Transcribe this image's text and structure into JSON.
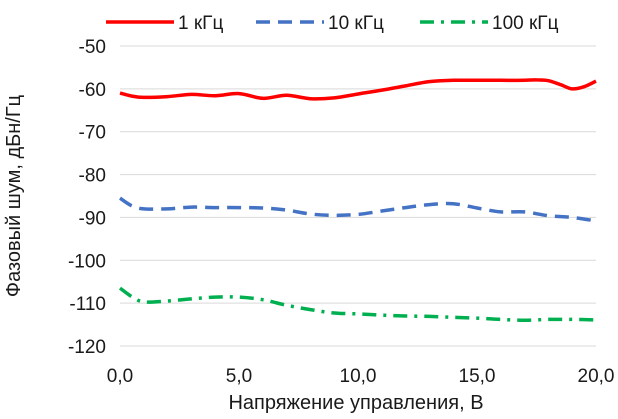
{
  "chart_data": {
    "type": "line",
    "xlabel": "Напряжение управления, В",
    "ylabel": "Фазовый шум, дБн/Гц",
    "xlim": [
      0,
      20
    ],
    "ylim": [
      -120,
      -50
    ],
    "x_ticks": [
      0,
      5,
      10,
      15,
      20
    ],
    "x_tick_labels": [
      "0,0",
      "5,0",
      "10,0",
      "15,0",
      "20,0"
    ],
    "y_ticks": [
      -50,
      -60,
      -70,
      -80,
      -90,
      -100,
      -110,
      -120
    ],
    "y_tick_labels": [
      "-50",
      "-60",
      "-70",
      "-80",
      "-90",
      "-100",
      "-110",
      "-120"
    ],
    "grid": "horizontal",
    "legend_position": "top",
    "series": [
      {
        "name": "1 кГц",
        "color": "#ff0000",
        "line_style": "solid",
        "x": [
          0,
          0.5,
          1,
          2,
          3,
          4,
          5,
          6,
          7,
          8,
          9,
          10,
          11,
          12,
          13,
          14,
          15,
          16,
          17,
          17.5,
          18,
          18.5,
          19,
          19.5,
          20
        ],
        "y": [
          -61,
          -61.7,
          -62,
          -61.8,
          -61.3,
          -61.6,
          -61.1,
          -62.2,
          -61.5,
          -62.3,
          -62.1,
          -61.2,
          -60.3,
          -59.3,
          -58.3,
          -58.0,
          -58.0,
          -58.0,
          -58.0,
          -57.9,
          -58.1,
          -59.0,
          -60.0,
          -59.5,
          -58.2
        ]
      },
      {
        "name": "10 кГц",
        "color": "#4472c4",
        "line_style": "dashed",
        "x": [
          0,
          0.5,
          1,
          2,
          3,
          4,
          5,
          6,
          7,
          8,
          9,
          10,
          11,
          12,
          13,
          14,
          15,
          16,
          17,
          18,
          19,
          20
        ],
        "y": [
          -85.5,
          -87.3,
          -88,
          -88,
          -87.6,
          -87.7,
          -87.7,
          -87.8,
          -88.3,
          -89.2,
          -89.5,
          -89.3,
          -88.5,
          -87.7,
          -87.0,
          -86.8,
          -87.8,
          -88.7,
          -88.7,
          -89.6,
          -90,
          -90.8
        ]
      },
      {
        "name": "100 кГц",
        "color": "#00b050",
        "line_style": "dashdot",
        "x": [
          0,
          0.5,
          1,
          2,
          3,
          4,
          5,
          6,
          7,
          8,
          9,
          10,
          11,
          12,
          13,
          14,
          15,
          16,
          17,
          18,
          19,
          20
        ],
        "y": [
          -106.5,
          -108.5,
          -109.7,
          -109.5,
          -109,
          -108.6,
          -108.6,
          -109.2,
          -110.5,
          -111.5,
          -112.3,
          -112.5,
          -112.8,
          -113,
          -113.1,
          -113.3,
          -113.5,
          -113.8,
          -114,
          -113.8,
          -113.8,
          -113.9
        ]
      }
    ]
  }
}
